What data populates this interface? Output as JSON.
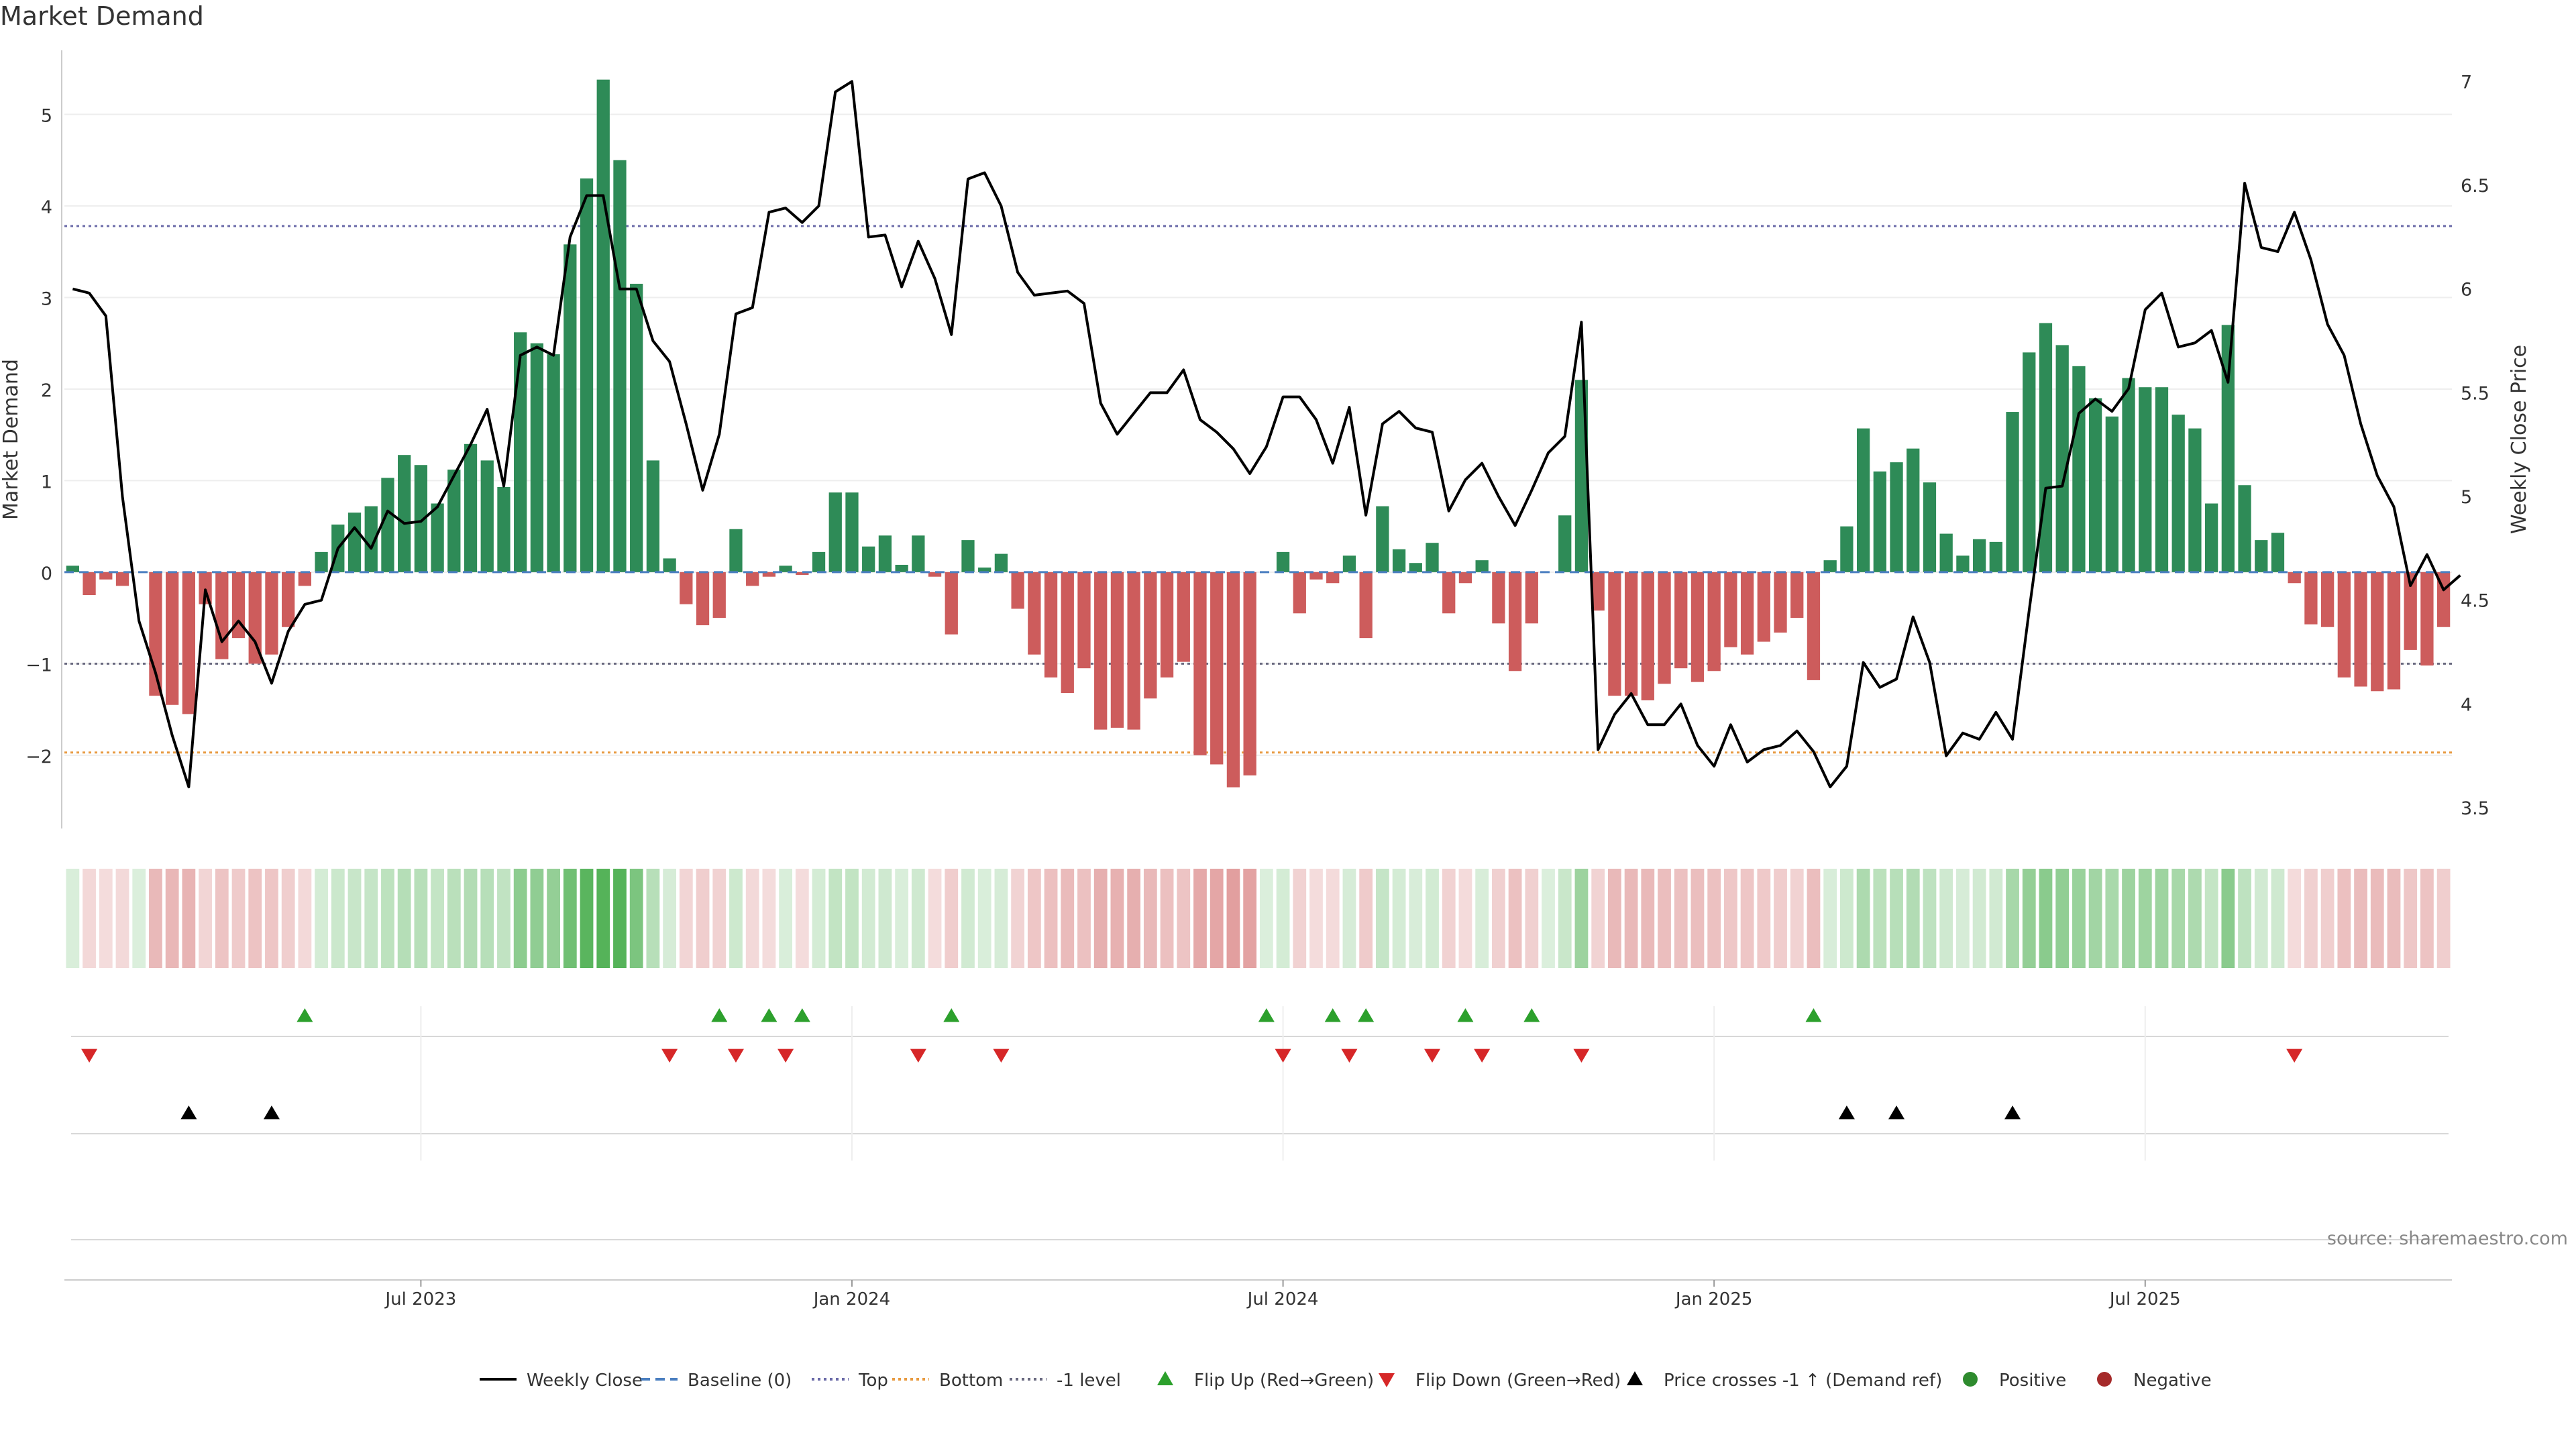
{
  "chart_data": {
    "type": "bar",
    "title": "Market Demand",
    "ylabel": "Market Demand",
    "y2label": "Weekly Close Price",
    "ylim": [
      -2.8,
      5.7
    ],
    "y2lim": [
      3.4,
      7.15
    ],
    "y_ticks": [
      "5",
      "4",
      "3",
      "2",
      "1",
      "0",
      "−1",
      "−2"
    ],
    "y2_ticks": [
      "7",
      "6.5",
      "6",
      "5.5",
      "5",
      "4.5",
      "4",
      "3.5"
    ],
    "x_ticks": [
      "Jul 2023",
      "Jan 2024",
      "Jul 2024",
      "Jan 2025",
      "Jul 2025"
    ],
    "x_tick_weeks": [
      21,
      47,
      73,
      99,
      125
    ],
    "reference_lines": [
      {
        "name": "Top",
        "value": 3.78,
        "color": "#6a6aa8"
      },
      {
        "name": "-1 level",
        "value": -1.0,
        "color": "#6a6a80"
      },
      {
        "name": "Bottom",
        "value": -1.97,
        "color": "#e89a40"
      }
    ],
    "colors": {
      "positive": "#2e8b57",
      "negative": "#cd5c5c",
      "line": "#000000",
      "flip_up": "#2ca02c",
      "flip_down": "#d62728",
      "cross": "#000000"
    },
    "demand": [
      0.07,
      -0.25,
      -0.08,
      -0.15,
      0,
      -1.35,
      -1.45,
      -1.55,
      -0.35,
      -0.95,
      -0.72,
      -1.0,
      -0.9,
      -0.6,
      -0.15,
      0.22,
      0.52,
      0.65,
      0.72,
      1.03,
      1.28,
      1.17,
      0.75,
      1.12,
      1.4,
      1.22,
      0.93,
      2.62,
      2.5,
      2.38,
      3.58,
      4.3,
      5.38,
      4.5,
      3.15,
      1.22,
      0.15,
      -0.35,
      -0.58,
      -0.5,
      0.47,
      -0.15,
      -0.05,
      0.07,
      -0.03,
      0.22,
      0.87,
      0.87,
      0.28,
      0.4,
      0.08,
      0.4,
      -0.05,
      -0.68,
      0.35,
      0.05,
      0.2,
      -0.4,
      -0.9,
      -1.15,
      -1.32,
      -1.05,
      -1.72,
      -1.7,
      -1.72,
      -1.38,
      -1.15,
      -0.98,
      -2.0,
      -2.1,
      -2.35,
      -2.22,
      0,
      0.22,
      -0.45,
      -0.08,
      -0.12,
      0.18,
      -0.72,
      0.72,
      0.25,
      0.1,
      0.32,
      -0.45,
      -0.12,
      0.13,
      -0.56,
      -1.08,
      -0.56,
      0,
      0.62,
      2.1,
      -0.42,
      -1.35,
      -1.35,
      -1.4,
      -1.22,
      -1.05,
      -1.2,
      -1.08,
      -0.82,
      -0.9,
      -0.76,
      -0.66,
      -0.5,
      -1.18,
      0.13,
      0.5,
      1.57,
      1.1,
      1.2,
      1.35,
      0.98,
      0.42,
      0.18,
      0.36,
      0.33,
      1.75,
      2.4,
      2.72,
      2.48,
      2.25,
      1.9,
      1.7,
      2.12,
      2.02,
      2.02,
      1.72,
      1.57,
      0.75,
      2.7,
      0.95,
      0.35,
      0.43,
      -0.12,
      -0.57,
      -0.6,
      -1.15,
      -1.25,
      -1.3,
      -1.28,
      -0.85,
      -1.02,
      -0.6
    ],
    "price": [
      6.0,
      5.98,
      5.87,
      5.0,
      4.4,
      4.15,
      3.85,
      3.6,
      4.55,
      4.3,
      4.4,
      4.3,
      4.1,
      4.35,
      4.48,
      4.5,
      4.75,
      4.85,
      4.75,
      4.93,
      4.87,
      4.88,
      4.95,
      5.1,
      5.25,
      5.42,
      5.05,
      5.68,
      5.72,
      5.68,
      6.25,
      6.45,
      6.45,
      6.0,
      6.0,
      5.75,
      5.65,
      5.35,
      5.03,
      5.3,
      5.88,
      5.91,
      6.37,
      6.39,
      6.32,
      6.4,
      6.95,
      7.0,
      6.25,
      6.26,
      6.01,
      6.23,
      6.05,
      5.78,
      6.53,
      6.56,
      6.4,
      6.08,
      5.97,
      5.98,
      5.99,
      5.93,
      5.45,
      5.3,
      5.4,
      5.5,
      5.5,
      5.61,
      5.37,
      5.31,
      5.23,
      5.11,
      5.24,
      5.48,
      5.48,
      5.37,
      5.16,
      5.43,
      4.91,
      5.35,
      5.41,
      5.33,
      5.31,
      4.93,
      5.08,
      5.16,
      5.0,
      4.86,
      5.03,
      5.21,
      5.29,
      5.84,
      3.78,
      3.95,
      4.05,
      3.9,
      3.9,
      4.0,
      3.8,
      3.7,
      3.9,
      3.72,
      3.78,
      3.8,
      3.87,
      3.77,
      3.6,
      3.7,
      4.2,
      4.08,
      4.12,
      4.42,
      4.2,
      3.75,
      3.86,
      3.83,
      3.96,
      3.83,
      4.45,
      5.04,
      5.05,
      5.4,
      5.47,
      5.41,
      5.52,
      5.9,
      5.98,
      5.72,
      5.74,
      5.8,
      5.55,
      6.51,
      6.2,
      6.18,
      6.37,
      6.14,
      5.83,
      5.68,
      5.35,
      5.1,
      4.95,
      4.57,
      4.72,
      4.55,
      4.62
    ],
    "flip_up_weeks": [
      14,
      39,
      42,
      44,
      53,
      72,
      76,
      78,
      84,
      88,
      105
    ],
    "flip_down_weeks": [
      1,
      36,
      40,
      43,
      51,
      56,
      73,
      77,
      82,
      85,
      91,
      134
    ],
    "cross_weeks": [
      7,
      12,
      107,
      110,
      117
    ],
    "legend": [
      {
        "label": "Weekly Close",
        "kind": "line-solid",
        "color": "#000000"
      },
      {
        "label": "Baseline (0)",
        "kind": "line-dash",
        "color": "#4a7ec0"
      },
      {
        "label": "Top",
        "kind": "line-dot",
        "color": "#6a6aa8"
      },
      {
        "label": "Bottom",
        "kind": "line-dot",
        "color": "#e89a40"
      },
      {
        "label": "-1 level",
        "kind": "line-dot",
        "color": "#6a6a80"
      },
      {
        "label": "Flip Up (Red→Green)",
        "kind": "tri-up",
        "color": "#2ca02c"
      },
      {
        "label": "Flip Down (Green→Red)",
        "kind": "tri-down",
        "color": "#d62728"
      },
      {
        "label": "Price crosses -1 ↑ (Demand ref)",
        "kind": "tri-up",
        "color": "#000000"
      },
      {
        "label": "Positive",
        "kind": "dot",
        "color": "#2e8b2e"
      },
      {
        "label": "Negative",
        "kind": "dot",
        "color": "#a52a2a"
      }
    ],
    "source": "source: sharemaestro.com"
  }
}
